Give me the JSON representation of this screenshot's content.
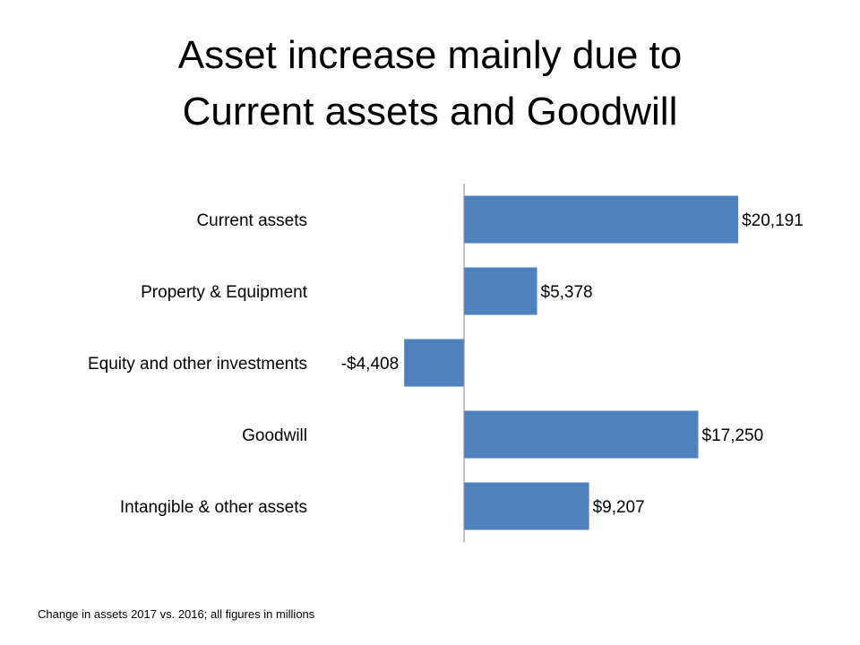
{
  "chart_data": {
    "type": "bar",
    "orientation": "horizontal",
    "title": [
      "Asset increase mainly due to",
      "Current assets and Goodwill"
    ],
    "categories": [
      "Current assets",
      "Property & Equipment",
      "Equity and other investments",
      "Goodwill",
      "Intangible & other assets"
    ],
    "values": [
      20191,
      5378,
      -4408,
      17250,
      9207
    ],
    "data_labels": [
      "$20,191",
      "$5,378",
      "-$4,408",
      "$17,250",
      "$9,207"
    ],
    "bar_color": "#4F81BD",
    "grid": false,
    "legend": "none",
    "footnote": "Change in assets 2017 vs. 2016; all figures in millions"
  }
}
